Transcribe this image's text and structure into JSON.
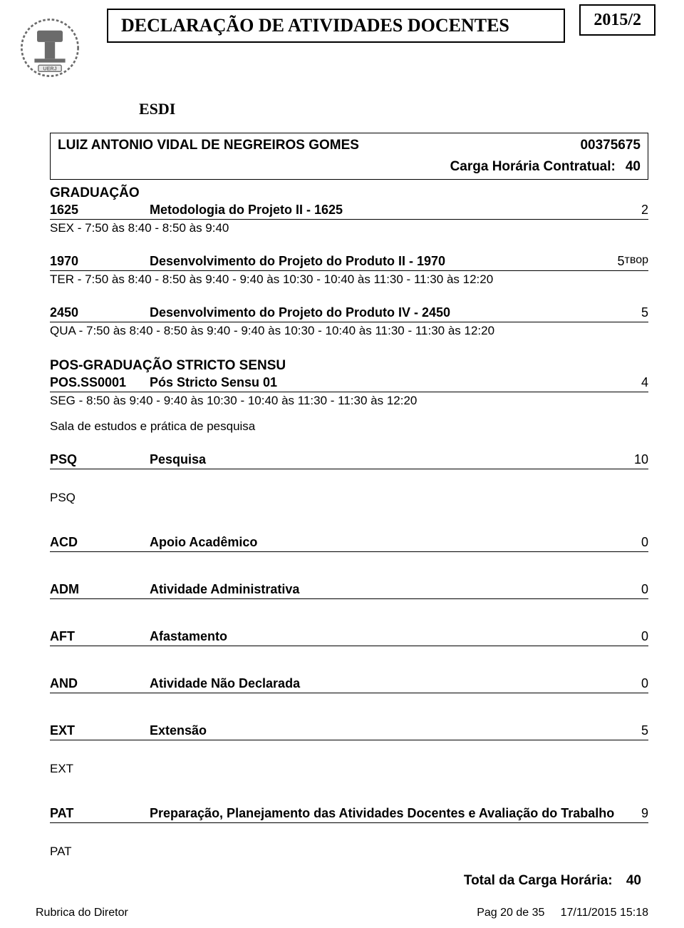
{
  "header": {
    "title": "DECLARAÇÃO DE ATIVIDADES DOCENTES",
    "period": "2015/2",
    "department": "ESDI"
  },
  "professor": {
    "name": "LUIZ ANTONIO VIDAL DE NEGREIROS GOMES",
    "id": "00375675",
    "carga_label": "Carga Horária Contratual:",
    "carga_value": "40"
  },
  "graduacao": {
    "title": "GRADUAÇÃO",
    "courses": [
      {
        "code": "1625",
        "name": "Metodologia do Projeto II - 1625",
        "hours": "2",
        "schedule": "SEX - 7:50 às 8:40 - 8:50 às 9:40"
      },
      {
        "code": "1970",
        "name": "Desenvolvimento do Projeto do Produto II - 1970",
        "hours": "5",
        "schedule": "TER - 7:50 às 8:40 - 8:50 às 9:40 - 9:40 às 10:30 - 10:40 às 11:30 - 11:30 às 12:20"
      },
      {
        "code": "2450",
        "name": "Desenvolvimento do Projeto do Produto IV - 2450",
        "hours": "5",
        "schedule": "QUA - 7:50 às 8:40 - 8:50 às 9:40 - 9:40 às 10:30 - 10:40 às 11:30 - 11:30 às 12:20"
      }
    ]
  },
  "pos": {
    "title": "POS-GRADUAÇÃO STRICTO SENSU",
    "course": {
      "code": "POS.SS0001",
      "name": "Pós Stricto Sensu 01",
      "hours": "4",
      "schedule": "SEG - 8:50 às 9:40 - 9:40 às 10:30 - 10:40 às 11:30 - 11:30 às 12:20"
    },
    "note": "Sala de estudos e prática de pesquisa"
  },
  "activities": [
    {
      "code": "PSQ",
      "name": "Pesquisa",
      "hours": "10",
      "extra": "PSQ"
    },
    {
      "code": "ACD",
      "name": "Apoio Acadêmico",
      "hours": "0",
      "extra": ""
    },
    {
      "code": "ADM",
      "name": "Atividade Administrativa",
      "hours": "0",
      "extra": ""
    },
    {
      "code": "AFT",
      "name": "Afastamento",
      "hours": "0",
      "extra": ""
    },
    {
      "code": "AND",
      "name": "Atividade Não Declarada",
      "hours": "0",
      "extra": ""
    },
    {
      "code": "EXT",
      "name": "Extensão",
      "hours": "5",
      "extra": "EXT"
    },
    {
      "code": "PAT",
      "name": "Preparação, Planejamento das Atividades Docentes e Avaliação do Trabalho",
      "hours": "9",
      "extra": "PAT"
    }
  ],
  "total": {
    "label": "Total da Carga Horária:",
    "value": "40"
  },
  "footer": {
    "left": "Rubrica do Diretor",
    "page": "Pag  20 de 35",
    "timestamp": "17/11/2015 15:18"
  },
  "colors": {
    "text": "#000000",
    "background": "#ffffff",
    "border": "#000000",
    "logo_gray": "#6b6b6b",
    "logo_bg": "#e8e8e8"
  },
  "fonts": {
    "serif": "Times New Roman",
    "sans": "Arial",
    "title_size": 26,
    "body_size": 18
  }
}
